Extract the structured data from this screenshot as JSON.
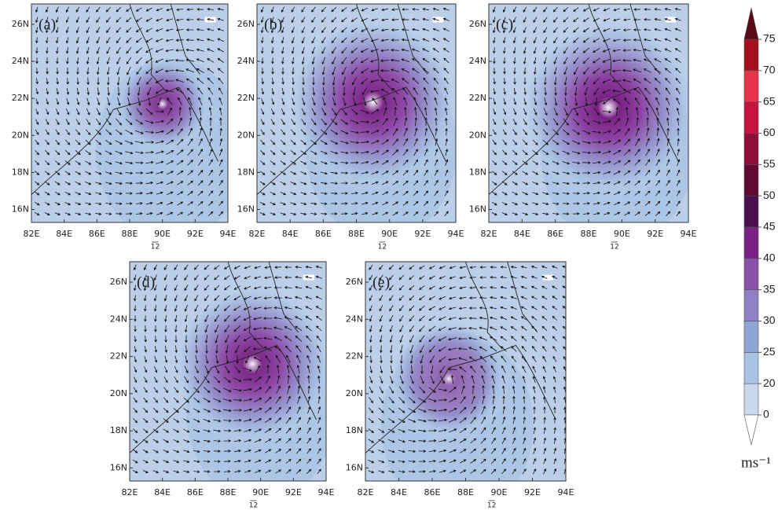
{
  "panels": [
    {
      "label": "(a)",
      "ref_vector": "12"
    },
    {
      "label": "(b)",
      "ref_vector": "12"
    },
    {
      "label": "(c)",
      "ref_vector": "12"
    },
    {
      "label": "(d)",
      "ref_vector": "12"
    },
    {
      "label": "(e)",
      "ref_vector": "12"
    }
  ],
  "map": {
    "xlim": [
      82,
      94
    ],
    "ylim": [
      15.3,
      27.1
    ],
    "xticks": [
      {
        "value": 82,
        "label": "82E"
      },
      {
        "value": 84,
        "label": "84E"
      },
      {
        "value": 86,
        "label": "86E"
      },
      {
        "value": 88,
        "label": "88E"
      },
      {
        "value": 90,
        "label": "90E"
      },
      {
        "value": 92,
        "label": "92E"
      },
      {
        "value": 94,
        "label": "94E"
      }
    ],
    "yticks": [
      {
        "value": 16,
        "label": "16N"
      },
      {
        "value": 18,
        "label": "18N"
      },
      {
        "value": 20,
        "label": "20N"
      },
      {
        "value": 22,
        "label": "22N"
      },
      {
        "value": 24,
        "label": "24N"
      },
      {
        "value": 26,
        "label": "26N"
      }
    ]
  },
  "colorbar": {
    "ticks": [
      0,
      20,
      25,
      30,
      35,
      40,
      45,
      50,
      55,
      60,
      65,
      70,
      75
    ],
    "colors": [
      "#c8d8ed",
      "#a9c3e4",
      "#8fa5d6",
      "#8f80c3",
      "#8a52a9",
      "#7a2184",
      "#4a1050",
      "#5e0b2f",
      "#920c3b",
      "#c6143f",
      "#e8344a",
      "#a5101f"
    ],
    "over_color": "#5a0a12",
    "under_color": "#ffffff",
    "unit": "ms⁻¹"
  }
}
